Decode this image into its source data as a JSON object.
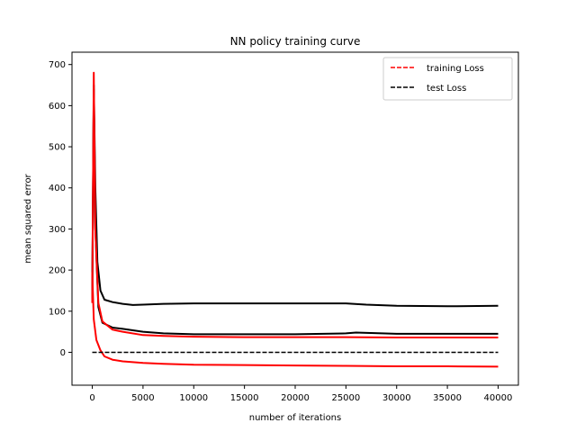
{
  "chart_data": {
    "type": "line",
    "title": "NN policy training curve",
    "xlabel": "number of iterations",
    "ylabel": "mean squared error",
    "xlim": [
      -2000,
      42000
    ],
    "ylim": [
      -80,
      730
    ],
    "xticks": [
      0,
      5000,
      10000,
      15000,
      20000,
      25000,
      30000,
      35000,
      40000
    ],
    "yticks": [
      0,
      100,
      200,
      300,
      400,
      500,
      600,
      700
    ],
    "grid": false,
    "legend": {
      "location": "upper-right",
      "entries": [
        {
          "label": "training Loss",
          "color": "#ff0000",
          "style": "dashed"
        },
        {
          "label": "test Loss",
          "color": "#000000",
          "style": "dashed"
        }
      ]
    },
    "series": [
      {
        "color": "#000000",
        "x": [
          0,
          150,
          300,
          500,
          800,
          1200,
          2000,
          3000,
          4000,
          5000,
          7000,
          10000,
          15000,
          20000,
          25000,
          27000,
          30000,
          35000,
          40000
        ],
        "y": [
          150,
          650,
          400,
          220,
          150,
          128,
          122,
          118,
          115,
          116,
          118,
          119,
          119,
          119,
          119,
          116,
          113,
          112,
          113
        ]
      },
      {
        "color": "#000000",
        "x": [
          0,
          150,
          300,
          600,
          1000,
          2000,
          3000,
          5000,
          7000,
          10000,
          15000,
          20000,
          25000,
          26000,
          30000,
          35000,
          40000
        ],
        "y": [
          130,
          640,
          300,
          110,
          72,
          60,
          57,
          50,
          46,
          44,
          44,
          44,
          46,
          48,
          45,
          45,
          45
        ]
      },
      {
        "color": "#ff0000",
        "x": [
          0,
          150,
          300,
          600,
          1000,
          2000,
          3000,
          5000,
          7000,
          10000,
          15000,
          20000,
          25000,
          30000,
          35000,
          40000
        ],
        "y": [
          120,
          680,
          300,
          120,
          75,
          55,
          50,
          42,
          40,
          38,
          37,
          37,
          37,
          36,
          36,
          36
        ]
      },
      {
        "color": "#ff0000",
        "x": [
          0,
          150,
          400,
          800,
          1200,
          2000,
          3000,
          5000,
          7000,
          10000,
          15000,
          20000,
          25000,
          30000,
          35000,
          40000
        ],
        "y": [
          195,
          80,
          30,
          5,
          -10,
          -18,
          -22,
          -26,
          -28,
          -30,
          -31,
          -32,
          -33,
          -34,
          -34,
          -35
        ]
      },
      {
        "color": "#000000",
        "x": [
          0,
          40000
        ],
        "y": [
          0,
          0
        ]
      }
    ]
  }
}
